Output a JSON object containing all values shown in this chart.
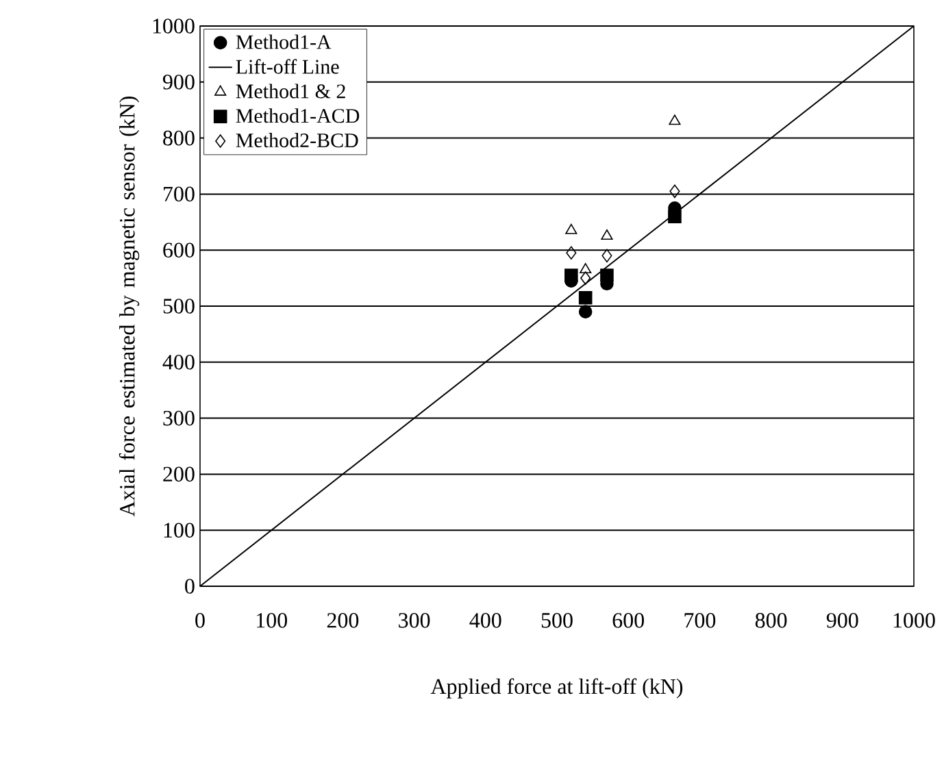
{
  "chart_data": {
    "type": "scatter",
    "xlabel": "Applied force at lift-off (kN)",
    "ylabel": "Axial force estimated by magnetic sensor (kN)",
    "xlim": [
      0,
      1000
    ],
    "ylim": [
      0,
      1000
    ],
    "xticks": [
      0,
      100,
      200,
      300,
      400,
      500,
      600,
      700,
      800,
      900,
      1000
    ],
    "yticks": [
      0,
      100,
      200,
      300,
      400,
      500,
      600,
      700,
      800,
      900,
      1000
    ],
    "grid": "y",
    "legend": "top left",
    "series": [
      {
        "name": "Method1-A",
        "marker": "circle",
        "color": "#000000",
        "x": [
          520,
          540,
          570,
          665
        ],
        "values": [
          545,
          490,
          540,
          675
        ]
      },
      {
        "name": "Lift-off Line",
        "type": "line",
        "marker": "none",
        "color": "#000000",
        "x": [
          0,
          1000
        ],
        "values": [
          0,
          1000
        ]
      },
      {
        "name": "Method1 & 2",
        "marker": "triangle",
        "color": "#000000",
        "x": [
          520,
          540,
          570,
          665
        ],
        "values": [
          635,
          565,
          625,
          830
        ]
      },
      {
        "name": "Method1-ACD",
        "marker": "square",
        "color": "#000000",
        "x": [
          520,
          540,
          570,
          665
        ],
        "values": [
          555,
          515,
          555,
          660
        ]
      },
      {
        "name": "Method2-BCD",
        "marker": "diamond",
        "color": "#000000",
        "x": [
          520,
          540,
          570,
          665
        ],
        "values": [
          595,
          550,
          590,
          705
        ]
      }
    ]
  }
}
